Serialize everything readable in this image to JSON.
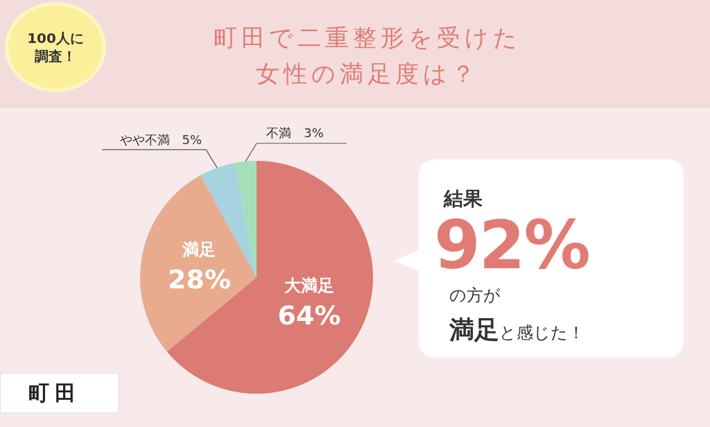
{
  "chart_data": {
    "type": "pie",
    "title": "町田で二重整形を受けた女性の満足度は？",
    "categories": [
      "大満足",
      "満足",
      "やや不満",
      "不満"
    ],
    "values": [
      64,
      28,
      5,
      3
    ],
    "value_labels": [
      "64%",
      "28%",
      "5%",
      "3%"
    ],
    "colors": [
      "#db7b73",
      "#e8ab8d",
      "#a6d3df",
      "#a5dfb8"
    ],
    "annotations": [
      "100人に調査！",
      "結果",
      "92%",
      "の方が",
      "満足",
      "と感じた！",
      "町田"
    ]
  }
}
